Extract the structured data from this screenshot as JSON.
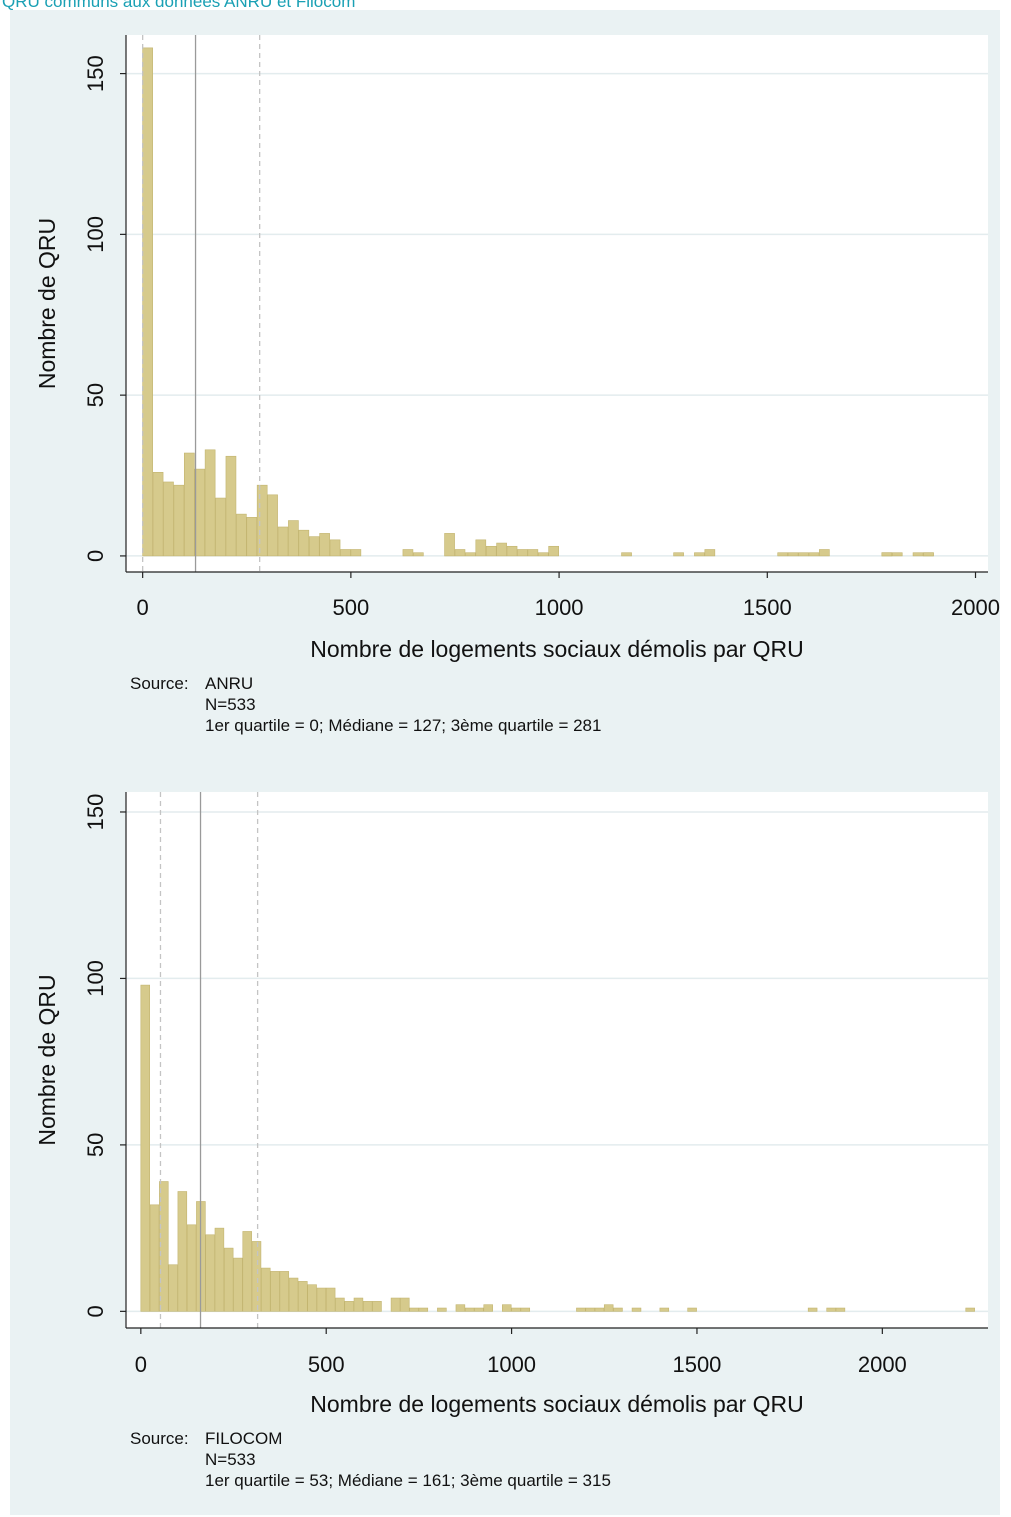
{
  "header_title": "QRU communs aux données ANRU et Filocom",
  "chart_data": [
    {
      "type": "bar",
      "subtype": "histogram",
      "xlabel": "Nombre de logements sociaux démolis par QRU",
      "ylabel": "Nombre de QRU",
      "xlim": [
        -40,
        2030
      ],
      "ylim": [
        -5,
        162
      ],
      "xticks": [
        0,
        500,
        1000,
        1500,
        2000
      ],
      "yticks": [
        0,
        50,
        100,
        150
      ],
      "grid": true,
      "bin_start": 0,
      "bin_width": 25,
      "values": [
        158,
        26,
        23,
        22,
        32,
        27,
        33,
        18,
        31,
        13,
        12,
        22,
        19,
        9,
        11,
        8,
        6,
        7,
        5,
        2,
        2,
        0,
        0,
        0,
        0,
        2,
        1,
        0,
        0,
        7,
        2,
        1,
        5,
        3,
        4,
        3,
        2,
        2,
        1,
        3,
        0,
        0,
        0,
        0,
        0,
        0,
        1,
        0,
        0,
        0,
        0,
        1,
        0,
        1,
        2,
        0,
        0,
        0,
        0,
        0,
        0,
        1,
        1,
        1,
        1,
        2,
        0,
        0,
        0,
        0,
        0,
        1,
        0,
        0,
        1,
        1,
        0,
        0,
        0,
        0,
        0,
        0,
        0,
        0,
        0,
        0,
        0,
        0,
        0,
        0,
        0,
        0,
        0,
        0,
        0,
        0,
        0,
        0,
        0,
        0,
        0,
        0,
        0,
        0,
        0,
        0,
        0,
        0,
        0,
        0,
        0,
        0,
        0,
        0,
        0,
        0,
        0,
        0,
        0,
        0,
        0,
        0,
        0,
        0,
        0,
        0,
        0,
        0,
        0,
        0,
        0,
        0,
        0,
        0,
        0,
        0,
        0,
        0,
        0,
        0,
        0,
        0,
        0,
        0,
        0,
        0,
        0,
        0,
        0,
        0,
        0,
        0,
        0,
        0,
        0,
        0,
        0,
        0,
        0,
        0,
        0,
        0,
        0,
        0,
        0,
        0,
        0,
        0,
        0,
        0,
        0,
        0,
        0,
        0,
        0,
        0,
        0,
        0,
        0,
        0,
        0,
        0,
        0,
        0,
        0,
        0,
        0,
        0,
        0,
        0,
        0,
        0,
        0,
        0,
        0,
        0,
        0,
        0,
        0,
        0,
        0,
        0,
        0,
        0,
        0,
        0,
        0,
        0,
        0,
        0,
        0,
        0,
        0,
        0,
        0,
        0,
        0,
        0,
        0,
        0,
        0,
        0,
        0,
        0,
        0,
        0,
        0,
        0,
        0,
        0,
        0,
        0,
        0,
        0,
        0,
        0,
        0,
        0,
        0,
        0,
        0,
        0,
        0,
        0,
        0,
        0,
        0,
        0,
        0,
        0,
        0,
        0,
        0,
        0,
        0,
        0,
        0,
        0,
        0,
        0,
        0,
        0,
        0,
        0,
        0,
        0,
        0,
        0,
        0,
        0,
        0,
        0,
        0,
        0,
        0,
        0,
        0,
        0,
        0,
        0,
        0,
        0,
        0,
        0,
        0,
        0,
        0,
        0,
        0,
        0,
        0
      ],
      "extra_bars": [
        {
          "x": 1775,
          "value": 1
        },
        {
          "x": 1800,
          "value": 1
        },
        {
          "x": 1875,
          "value": 1
        }
      ],
      "reference_lines": [
        {
          "name": "1er quartile",
          "value": 0,
          "style": "dashed"
        },
        {
          "name": "Médiane",
          "value": 127,
          "style": "solid"
        },
        {
          "name": "3ème quartile",
          "value": 281,
          "style": "dashed"
        }
      ],
      "notes": {
        "source_label": "Source:",
        "source": "ANRU",
        "n": "N=533",
        "stats": "1er quartile = 0; Médiane = 127; 3ème quartile = 281"
      }
    },
    {
      "type": "bar",
      "subtype": "histogram",
      "xlabel": "Nombre de logements sociaux démolis par QRU",
      "ylabel": "Nombre de QRU",
      "xlim": [
        -40,
        2285
      ],
      "ylim": [
        -5,
        156
      ],
      "xticks": [
        0,
        500,
        1000,
        1500,
        2000
      ],
      "yticks": [
        0,
        50,
        100,
        150
      ],
      "grid": true,
      "bin_start": 0,
      "bin_width": 25,
      "values": [
        98,
        32,
        39,
        14,
        36,
        26,
        33,
        23,
        25,
        19,
        16,
        24,
        21,
        13,
        12,
        12,
        10,
        9,
        8,
        7,
        7,
        4,
        3,
        4,
        3,
        3,
        0,
        4,
        4,
        1,
        1,
        0,
        1,
        0,
        2,
        1,
        1,
        2,
        0,
        2,
        1,
        1,
        0,
        0,
        0,
        0,
        0,
        1,
        1,
        1,
        2,
        1,
        0,
        1,
        0,
        0,
        1,
        0,
        0,
        0,
        0,
        0,
        0,
        0,
        0,
        0,
        0,
        0,
        0,
        0,
        0,
        0,
        0,
        0,
        0,
        0,
        0,
        0,
        0,
        0,
        0,
        0,
        0,
        0,
        0,
        0,
        0,
        0,
        0,
        0
      ],
      "extra_bars": [
        {
          "x": 1475,
          "value": 1
        },
        {
          "x": 1800,
          "value": 1
        },
        {
          "x": 1850,
          "value": 1
        },
        {
          "x": 1875,
          "value": 1
        },
        {
          "x": 2225,
          "value": 1
        }
      ],
      "reference_lines": [
        {
          "name": "1er quartile",
          "value": 53,
          "style": "dashed"
        },
        {
          "name": "Médiane",
          "value": 161,
          "style": "solid"
        },
        {
          "name": "3ème quartile",
          "value": 315,
          "style": "dashed"
        }
      ],
      "notes": {
        "source_label": "Source:",
        "source": "FILOCOM",
        "n": "N=533",
        "stats": "1er quartile = 53; Médiane = 161; 3ème quartile = 315"
      }
    }
  ]
}
